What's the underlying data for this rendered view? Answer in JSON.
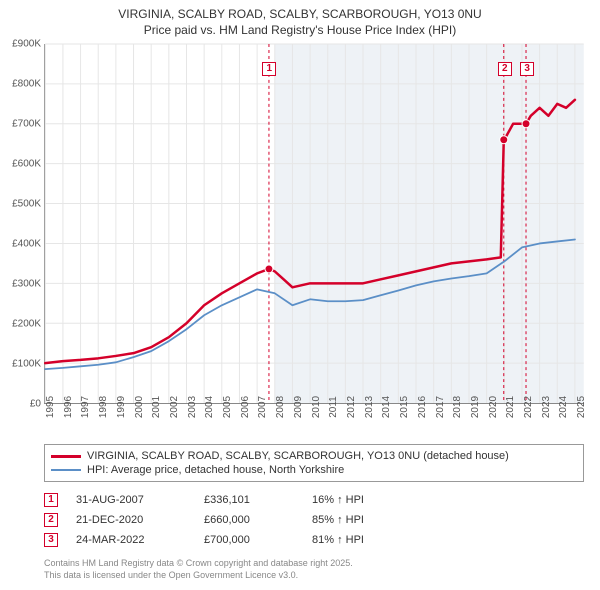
{
  "title_line1": "VIRGINIA, SCALBY ROAD, SCALBY, SCARBOROUGH, YO13 0NU",
  "title_line2": "Price paid vs. HM Land Registry's House Price Index (HPI)",
  "chart": {
    "type": "line",
    "background_color": "#ffffff",
    "shaded_region_color": "#eef2f6",
    "shaded_region_start_year": 2008,
    "grid_color": "#e6e6e6",
    "axis_color": "#888888",
    "label_color": "#555555",
    "label_fontsize": 10,
    "x_min": 1995,
    "x_max": 2025.5,
    "y_min": 0,
    "y_max": 900000,
    "y_tick_step": 100000,
    "y_tick_labels": [
      "£0",
      "£100K",
      "£200K",
      "£300K",
      "£400K",
      "£500K",
      "£600K",
      "£700K",
      "£800K",
      "£900K"
    ],
    "x_ticks": [
      1995,
      1996,
      1997,
      1998,
      1999,
      2000,
      2001,
      2002,
      2003,
      2004,
      2005,
      2006,
      2007,
      2008,
      2009,
      2010,
      2011,
      2012,
      2013,
      2014,
      2015,
      2016,
      2017,
      2018,
      2019,
      2020,
      2021,
      2022,
      2023,
      2024,
      2025
    ],
    "series": [
      {
        "name": "price_paid",
        "color": "#d4002a",
        "line_width": 2.5,
        "points": [
          [
            1995,
            100000
          ],
          [
            1996,
            105000
          ],
          [
            1997,
            108000
          ],
          [
            1998,
            112000
          ],
          [
            1999,
            118000
          ],
          [
            2000,
            125000
          ],
          [
            2001,
            140000
          ],
          [
            2002,
            165000
          ],
          [
            2003,
            200000
          ],
          [
            2004,
            245000
          ],
          [
            2005,
            275000
          ],
          [
            2006,
            300000
          ],
          [
            2007,
            325000
          ],
          [
            2007.67,
            336101
          ],
          [
            2008,
            330000
          ],
          [
            2008.5,
            310000
          ],
          [
            2009,
            290000
          ],
          [
            2010,
            300000
          ],
          [
            2011,
            300000
          ],
          [
            2012,
            300000
          ],
          [
            2013,
            300000
          ],
          [
            2014,
            310000
          ],
          [
            2015,
            320000
          ],
          [
            2016,
            330000
          ],
          [
            2017,
            340000
          ],
          [
            2018,
            350000
          ],
          [
            2019,
            355000
          ],
          [
            2020,
            360000
          ],
          [
            2020.8,
            365000
          ],
          [
            2020.97,
            660000
          ],
          [
            2021,
            660000
          ],
          [
            2021.5,
            700000
          ],
          [
            2022,
            700000
          ],
          [
            2022.23,
            700000
          ],
          [
            2022.5,
            720000
          ],
          [
            2023,
            740000
          ],
          [
            2023.5,
            720000
          ],
          [
            2024,
            750000
          ],
          [
            2024.5,
            740000
          ],
          [
            2025,
            760000
          ]
        ],
        "sale_markers": [
          {
            "x": 2007.67,
            "y": 336101
          },
          {
            "x": 2020.97,
            "y": 660000
          },
          {
            "x": 2022.23,
            "y": 700000
          }
        ]
      },
      {
        "name": "hpi",
        "color": "#5b8fc7",
        "line_width": 1.8,
        "points": [
          [
            1995,
            85000
          ],
          [
            1996,
            88000
          ],
          [
            1997,
            92000
          ],
          [
            1998,
            96000
          ],
          [
            1999,
            102000
          ],
          [
            2000,
            115000
          ],
          [
            2001,
            130000
          ],
          [
            2002,
            155000
          ],
          [
            2003,
            185000
          ],
          [
            2004,
            220000
          ],
          [
            2005,
            245000
          ],
          [
            2006,
            265000
          ],
          [
            2007,
            285000
          ],
          [
            2008,
            275000
          ],
          [
            2009,
            245000
          ],
          [
            2010,
            260000
          ],
          [
            2011,
            255000
          ],
          [
            2012,
            255000
          ],
          [
            2013,
            258000
          ],
          [
            2014,
            270000
          ],
          [
            2015,
            282000
          ],
          [
            2016,
            295000
          ],
          [
            2017,
            305000
          ],
          [
            2018,
            312000
          ],
          [
            2019,
            318000
          ],
          [
            2020,
            325000
          ],
          [
            2021,
            355000
          ],
          [
            2022,
            390000
          ],
          [
            2023,
            400000
          ],
          [
            2024,
            405000
          ],
          [
            2025,
            410000
          ]
        ]
      }
    ],
    "event_lines": [
      {
        "id": "1",
        "x": 2007.67,
        "color": "#d4002a",
        "dash": "3,3"
      },
      {
        "id": "2",
        "x": 2020.97,
        "color": "#d4002a",
        "dash": "3,3"
      },
      {
        "id": "3",
        "x": 2022.23,
        "color": "#d4002a",
        "dash": "3,3"
      }
    ],
    "event_marker_boxes": [
      {
        "id": "1",
        "x": 2007.67
      },
      {
        "id": "2",
        "x": 2020.97
      },
      {
        "id": "3",
        "x": 2022.23
      }
    ]
  },
  "legend": {
    "items": [
      {
        "color": "#d4002a",
        "width": 3,
        "label": "VIRGINIA, SCALBY ROAD, SCALBY, SCARBOROUGH, YO13 0NU (detached house)"
      },
      {
        "color": "#5b8fc7",
        "width": 2,
        "label": "HPI: Average price, detached house, North Yorkshire"
      }
    ]
  },
  "sales": [
    {
      "id": "1",
      "date": "31-AUG-2007",
      "price": "£336,101",
      "pct": "16% ↑ HPI"
    },
    {
      "id": "2",
      "date": "21-DEC-2020",
      "price": "£660,000",
      "pct": "85% ↑ HPI"
    },
    {
      "id": "3",
      "date": "24-MAR-2022",
      "price": "£700,000",
      "pct": "81% ↑ HPI"
    }
  ],
  "footer_line1": "Contains HM Land Registry data © Crown copyright and database right 2025.",
  "footer_line2": "This data is licensed under the Open Government Licence v3.0."
}
